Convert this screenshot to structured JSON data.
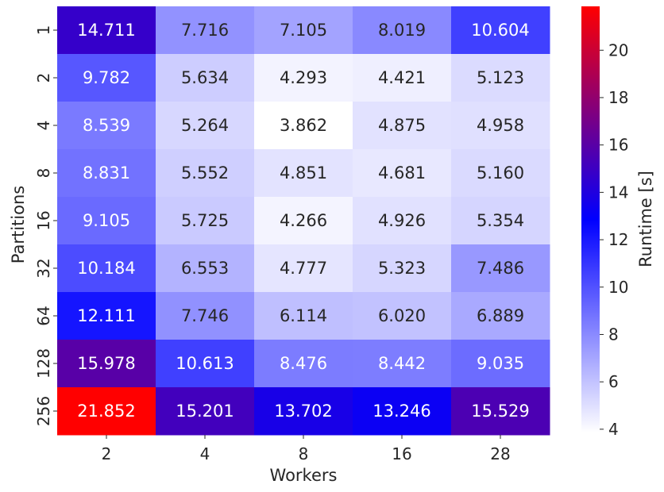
{
  "chart_data": {
    "type": "heatmap",
    "x_categories": [
      "2",
      "4",
      "8",
      "16",
      "28"
    ],
    "y_categories": [
      "1",
      "2",
      "4",
      "8",
      "16",
      "32",
      "64",
      "128",
      "256"
    ],
    "values": [
      [
        14.711,
        7.716,
        7.105,
        8.019,
        10.604
      ],
      [
        9.782,
        5.634,
        4.293,
        4.421,
        5.123
      ],
      [
        8.539,
        5.264,
        3.862,
        4.875,
        4.958
      ],
      [
        8.831,
        5.552,
        4.851,
        4.681,
        5.16
      ],
      [
        9.105,
        5.725,
        4.266,
        4.926,
        5.354
      ],
      [
        10.184,
        6.553,
        4.777,
        5.323,
        7.486
      ],
      [
        12.111,
        7.746,
        6.114,
        6.02,
        6.889
      ],
      [
        15.978,
        10.613,
        8.476,
        8.442,
        9.035
      ],
      [
        21.852,
        15.201,
        13.702,
        13.246,
        15.529
      ]
    ],
    "value_labels": [
      [
        "14.711",
        "7.716",
        "7.105",
        "8.019",
        "10.604"
      ],
      [
        "9.782",
        "5.634",
        "4.293",
        "4.421",
        "5.123"
      ],
      [
        "8.539",
        "5.264",
        "3.862",
        "4.875",
        "4.958"
      ],
      [
        "8.831",
        "5.552",
        "4.851",
        "4.681",
        "5.160"
      ],
      [
        "9.105",
        "5.725",
        "4.266",
        "4.926",
        "5.354"
      ],
      [
        "10.184",
        "6.553",
        "4.777",
        "5.323",
        "7.486"
      ],
      [
        "12.111",
        "7.746",
        "6.114",
        "6.020",
        "6.889"
      ],
      [
        "15.978",
        "10.613",
        "8.476",
        "8.442",
        "9.035"
      ],
      [
        "21.852",
        "15.201",
        "13.702",
        "13.246",
        "15.529"
      ]
    ],
    "xlabel": "Workers",
    "ylabel": "Partitions",
    "colorbar": {
      "label": "Runtime [s]",
      "range": [
        3.862,
        21.852
      ],
      "ticks": [
        "4",
        "6",
        "8",
        "10",
        "12",
        "14",
        "16",
        "18",
        "20"
      ],
      "tick_values": [
        4,
        6,
        8,
        10,
        12,
        14,
        16,
        18,
        20
      ],
      "colormap": [
        "#ffffff",
        "#0000ff",
        "#ff0000"
      ]
    },
    "grid": false,
    "annotation_color_light": "#ffffff",
    "annotation_color_dark": "#262626"
  }
}
